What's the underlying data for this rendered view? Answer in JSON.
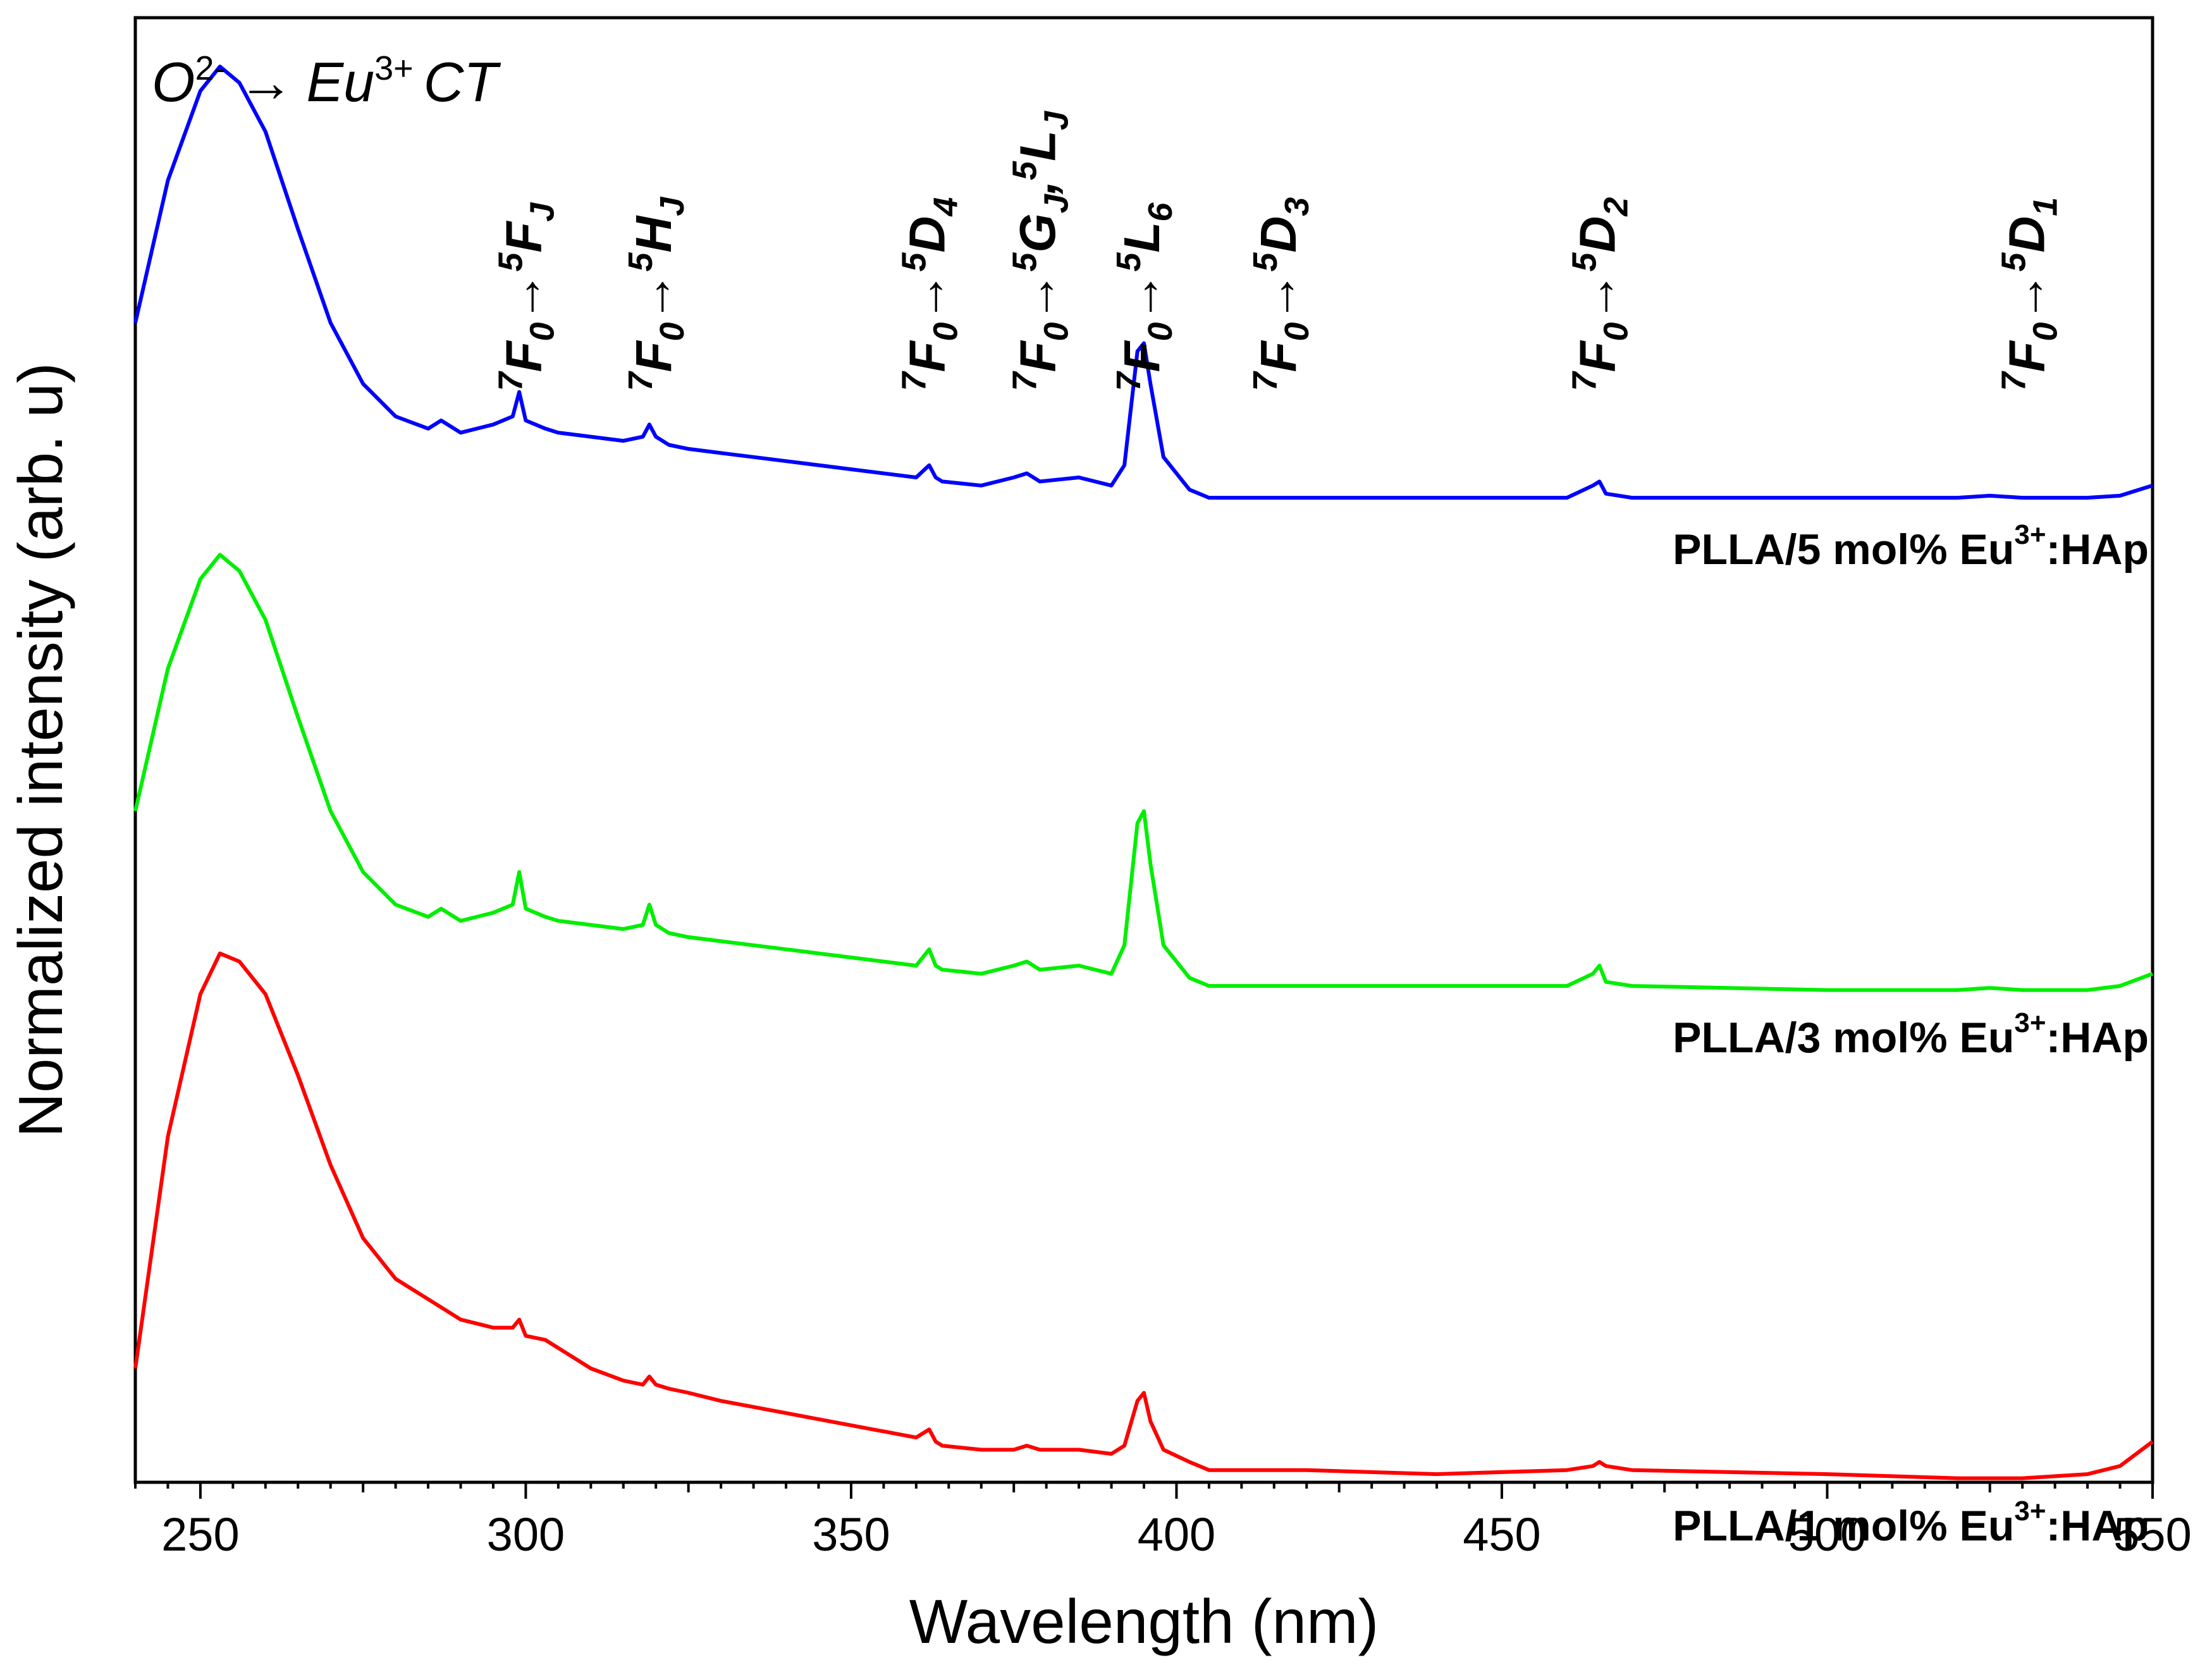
{
  "chart_data": {
    "type": "line",
    "title": "",
    "xlabel": "Wavelength (nm)",
    "ylabel": "Normalized intensity (arb. u)",
    "xlim": [
      240,
      550
    ],
    "ylim": [
      0,
      3.6
    ],
    "yticks_shown": false,
    "grid": false,
    "xticks": [
      250,
      300,
      350,
      400,
      450,
      500,
      550
    ],
    "xticks_labels": [
      "250",
      "300",
      "350",
      "400",
      "450",
      "500",
      "550"
    ],
    "annotations": {
      "ct": {
        "base": "O",
        "base_sup": "2-",
        "arrow": "→",
        "ion": "Eu",
        "ion_sup": "3+",
        "tail": "CT"
      },
      "transitions": [
        {
          "wavelength": 300,
          "pre": "7",
          "from": "F",
          "from_sub": "0",
          "arrow": "→",
          "to1_pre": "5",
          "to1": "F",
          "to1_sub": "J",
          "sep": "",
          "to2_pre": "",
          "to2": "",
          "to2_sub": ""
        },
        {
          "wavelength": 320,
          "pre": "7",
          "from": "F",
          "from_sub": "0",
          "arrow": "→",
          "to1_pre": "5",
          "to1": "H",
          "to1_sub": "J",
          "sep": "",
          "to2_pre": "",
          "to2": "",
          "to2_sub": ""
        },
        {
          "wavelength": 362,
          "pre": "7",
          "from": "F",
          "from_sub": "0",
          "arrow": "→",
          "to1_pre": "5",
          "to1": "D",
          "to1_sub": "4",
          "sep": "",
          "to2_pre": "",
          "to2": "",
          "to2_sub": ""
        },
        {
          "wavelength": 379,
          "pre": "7",
          "from": "F",
          "from_sub": "0",
          "arrow": "→",
          "to1_pre": "5",
          "to1": "G",
          "to1_sub": "J",
          "sep": ",",
          "to2_pre": "5",
          "to2": "L",
          "to2_sub": "J"
        },
        {
          "wavelength": 395,
          "pre": "7",
          "from": "F",
          "from_sub": "0",
          "arrow": "→",
          "to1_pre": "5",
          "to1": "L",
          "to1_sub": "6",
          "sep": "",
          "to2_pre": "",
          "to2": "",
          "to2_sub": ""
        },
        {
          "wavelength": 416,
          "pre": "7",
          "from": "F",
          "from_sub": "0",
          "arrow": "→",
          "to1_pre": "5",
          "to1": "D",
          "to1_sub": "3",
          "sep": "",
          "to2_pre": "",
          "to2": "",
          "to2_sub": ""
        },
        {
          "wavelength": 465,
          "pre": "7",
          "from": "F",
          "from_sub": "0",
          "arrow": "→",
          "to1_pre": "5",
          "to1": "D",
          "to1_sub": "2",
          "sep": "",
          "to2_pre": "",
          "to2": "",
          "to2_sub": ""
        },
        {
          "wavelength": 531,
          "pre": "7",
          "from": "F",
          "from_sub": "0",
          "arrow": "→",
          "to1_pre": "5",
          "to1": "D",
          "to1_sub": "1",
          "sep": "",
          "to2_pre": "",
          "to2": "",
          "to2_sub": ""
        }
      ]
    },
    "series": [
      {
        "name": "PLLA/5 mol% Eu3+:HAp",
        "label_parts": {
          "main": "PLLA/5 mol% Eu",
          "sup": "3+",
          "tail": ":HAp"
        },
        "color": "#0000ff",
        "offset": 2.4,
        "x": [
          240,
          245,
          250,
          253,
          256,
          260,
          265,
          270,
          275,
          280,
          285,
          287,
          290,
          295,
          298,
          299,
          300,
          303,
          305,
          310,
          315,
          318,
          319,
          320,
          322,
          325,
          330,
          340,
          350,
          360,
          362,
          363,
          364,
          370,
          375,
          377,
          379,
          385,
          390,
          392,
          394,
          395,
          396,
          398,
          402,
          405,
          410,
          420,
          440,
          460,
          464,
          465,
          466,
          470,
          500,
          520,
          525,
          530,
          540,
          545,
          550
        ],
        "y": [
          0.45,
          0.8,
          1.02,
          1.08,
          1.04,
          0.92,
          0.68,
          0.45,
          0.3,
          0.22,
          0.19,
          0.21,
          0.18,
          0.2,
          0.22,
          0.28,
          0.21,
          0.19,
          0.18,
          0.17,
          0.16,
          0.17,
          0.2,
          0.17,
          0.15,
          0.14,
          0.13,
          0.11,
          0.09,
          0.07,
          0.1,
          0.07,
          0.06,
          0.05,
          0.07,
          0.08,
          0.06,
          0.07,
          0.05,
          0.1,
          0.38,
          0.4,
          0.3,
          0.12,
          0.04,
          0.02,
          0.02,
          0.02,
          0.02,
          0.02,
          0.05,
          0.06,
          0.03,
          0.02,
          0.02,
          0.02,
          0.025,
          0.02,
          0.02,
          0.025,
          0.05
        ]
      },
      {
        "name": "PLLA/3 mol% Eu3+:HAp",
        "label_parts": {
          "main": "PLLA/3 mol% Eu",
          "sup": "3+",
          "tail": ":HAp"
        },
        "color": "#00ee00",
        "offset": 1.2,
        "x": [
          240,
          245,
          250,
          253,
          256,
          260,
          265,
          270,
          275,
          280,
          285,
          287,
          290,
          295,
          298,
          299,
          300,
          303,
          305,
          310,
          315,
          318,
          319,
          320,
          322,
          325,
          330,
          340,
          350,
          360,
          362,
          363,
          364,
          370,
          375,
          377,
          379,
          385,
          390,
          392,
          394,
          395,
          396,
          398,
          402,
          405,
          410,
          420,
          440,
          460,
          464,
          465,
          466,
          470,
          500,
          520,
          525,
          530,
          540,
          545,
          550
        ],
        "y": [
          0.45,
          0.8,
          1.02,
          1.08,
          1.04,
          0.92,
          0.68,
          0.45,
          0.3,
          0.22,
          0.19,
          0.21,
          0.18,
          0.2,
          0.22,
          0.3,
          0.21,
          0.19,
          0.18,
          0.17,
          0.16,
          0.17,
          0.22,
          0.17,
          0.15,
          0.14,
          0.13,
          0.11,
          0.09,
          0.07,
          0.11,
          0.07,
          0.06,
          0.05,
          0.07,
          0.08,
          0.06,
          0.07,
          0.05,
          0.12,
          0.42,
          0.45,
          0.32,
          0.12,
          0.04,
          0.02,
          0.02,
          0.02,
          0.02,
          0.02,
          0.05,
          0.07,
          0.03,
          0.02,
          0.01,
          0.01,
          0.015,
          0.01,
          0.01,
          0.02,
          0.05
        ]
      },
      {
        "name": "PLLA/1 mol% Eu3+:HAp",
        "label_parts": {
          "main": "PLLA/1 mol% Eu",
          "sup": "3+",
          "tail": ":HAp"
        },
        "color": "#ff0000",
        "offset": 0.0,
        "x": [
          240,
          245,
          250,
          253,
          256,
          260,
          265,
          270,
          275,
          280,
          285,
          290,
          295,
          298,
          299,
          300,
          303,
          305,
          310,
          315,
          318,
          319,
          320,
          322,
          325,
          330,
          340,
          350,
          360,
          362,
          363,
          364,
          370,
          375,
          377,
          379,
          385,
          390,
          392,
          394,
          395,
          396,
          398,
          402,
          405,
          410,
          420,
          440,
          460,
          464,
          465,
          466,
          470,
          500,
          520,
          530,
          540,
          545,
          550
        ],
        "y": [
          0.28,
          0.85,
          1.2,
          1.3,
          1.28,
          1.2,
          1.0,
          0.78,
          0.6,
          0.5,
          0.45,
          0.4,
          0.38,
          0.38,
          0.4,
          0.36,
          0.35,
          0.33,
          0.28,
          0.25,
          0.24,
          0.26,
          0.24,
          0.23,
          0.22,
          0.2,
          0.17,
          0.14,
          0.11,
          0.13,
          0.1,
          0.09,
          0.08,
          0.08,
          0.09,
          0.08,
          0.08,
          0.07,
          0.09,
          0.2,
          0.22,
          0.15,
          0.08,
          0.05,
          0.03,
          0.03,
          0.03,
          0.02,
          0.03,
          0.04,
          0.05,
          0.04,
          0.03,
          0.02,
          0.01,
          0.01,
          0.02,
          0.04,
          0.1
        ]
      }
    ]
  }
}
